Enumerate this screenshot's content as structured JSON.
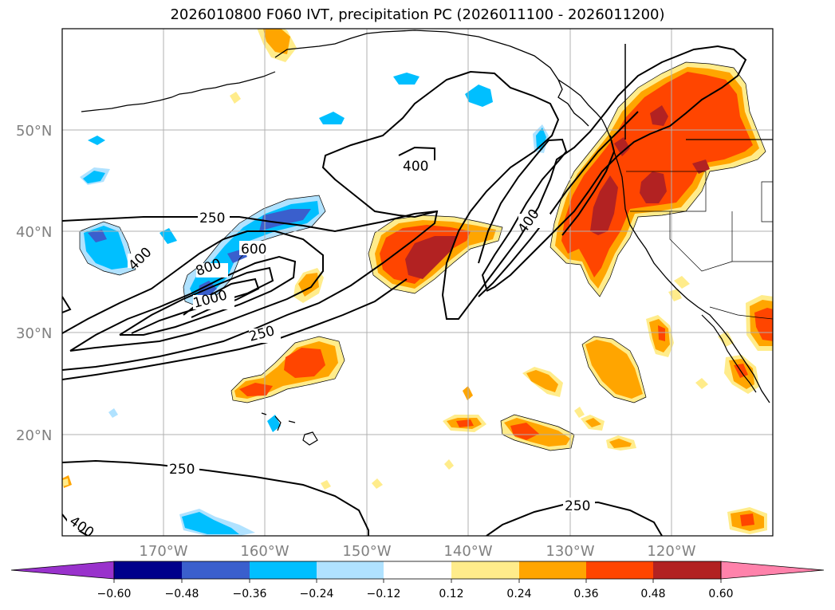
{
  "title": "2026010800 F060 IVT, precipitation PC (2026011100 - 2026011200)",
  "lat_labels": [
    "50°N",
    "40°N",
    "30°N",
    "20°N"
  ],
  "lon_labels": [
    "170°W",
    "160°W",
    "150°W",
    "140°W",
    "130°W",
    "120°W"
  ],
  "contour_labels": [
    "250",
    "400",
    "600",
    "800",
    "1000",
    "250",
    "250",
    "400",
    "400",
    "250",
    "400"
  ],
  "colors": {
    "neg_060": "#9932cc",
    "neg_048": "#00008b",
    "neg_036": "#3a5fcd",
    "neg_024": "#00bfff",
    "neg_012": "#b0e2ff",
    "zero": "#ffffff",
    "pos_012": "#ffec8b",
    "pos_024": "#ffa500",
    "pos_036": "#ff4500",
    "pos_048": "#b22222",
    "pos_060": "#ff82ab",
    "contour": "#000000",
    "grid": "#b0b0b0"
  },
  "colorbar": {
    "ticks": [
      "−0.60",
      "−0.48",
      "−0.36",
      "−0.24",
      "−0.12",
      "0.12",
      "0.24",
      "0.36",
      "0.48",
      "0.60"
    ]
  }
}
